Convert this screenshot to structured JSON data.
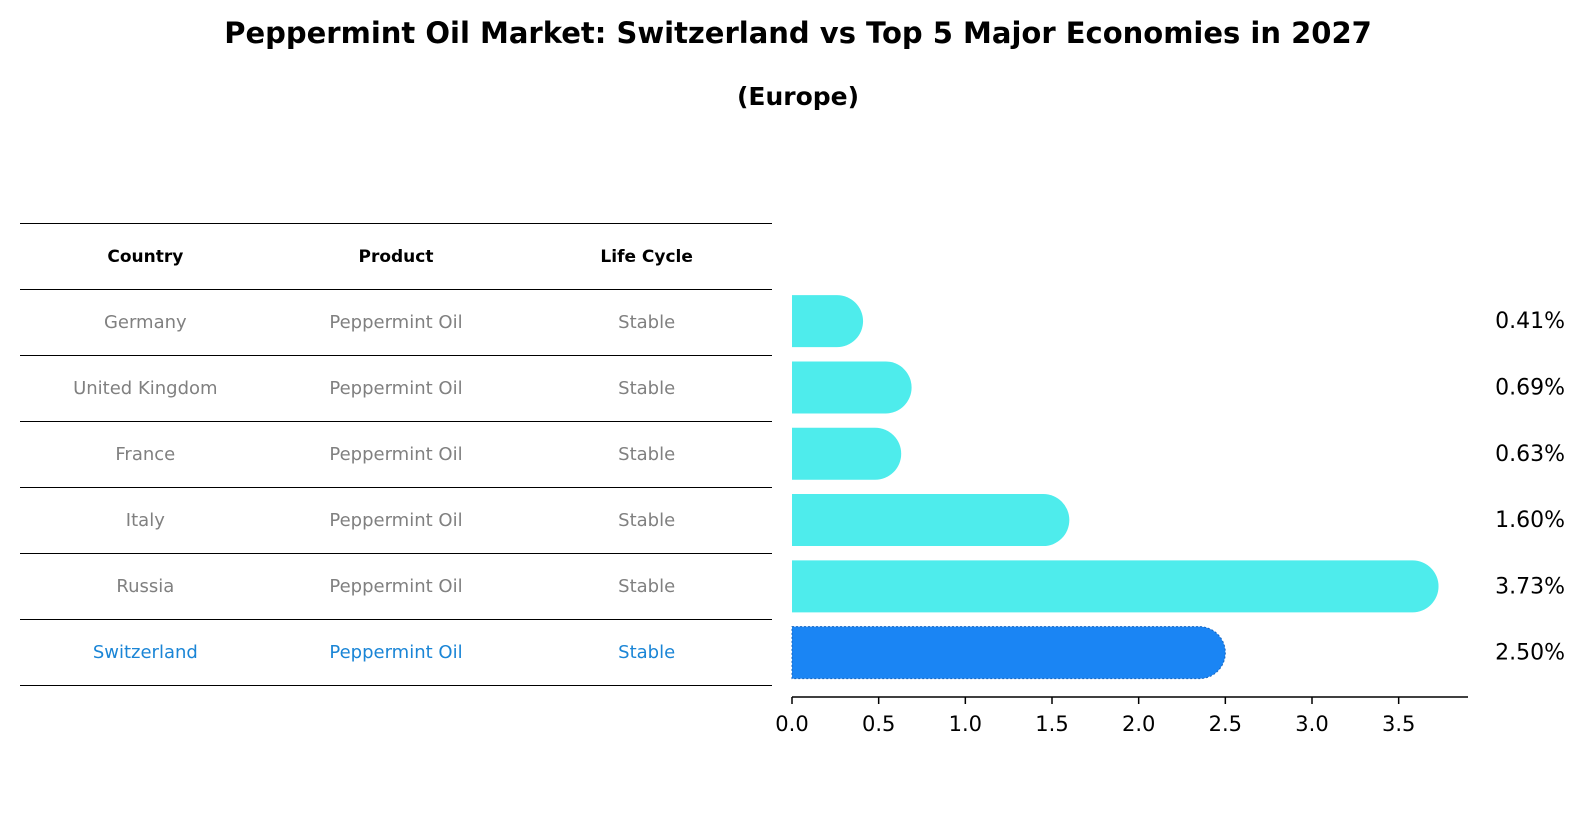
{
  "title": "Peppermint Oil Market: Switzerland vs Top 5 Major Economies in 2027",
  "subtitle": "(Europe)",
  "table": {
    "headers": [
      "Country",
      "Product",
      "Life Cycle"
    ],
    "rows": [
      {
        "country": "Germany",
        "product": "Peppermint Oil",
        "life_cycle": "Stable"
      },
      {
        "country": "United Kingdom",
        "product": "Peppermint Oil",
        "life_cycle": "Stable"
      },
      {
        "country": "France",
        "product": "Peppermint Oil",
        "life_cycle": "Stable"
      },
      {
        "country": "Italy",
        "product": "Peppermint Oil",
        "life_cycle": "Stable"
      },
      {
        "country": "Russia",
        "product": "Peppermint Oil",
        "life_cycle": "Stable"
      },
      {
        "country": "Switzerland",
        "product": "Peppermint Oil",
        "life_cycle": "Stable"
      }
    ]
  },
  "colors": {
    "bar": "#4eecec",
    "highlight_bar": "#1a85f4",
    "highlight_text": "#1a85d6",
    "muted_text": "#808080"
  },
  "chart_data": {
    "type": "bar",
    "orientation": "horizontal",
    "categories": [
      "Germany",
      "United Kingdom",
      "France",
      "Italy",
      "Russia",
      "Switzerland"
    ],
    "values": [
      0.41,
      0.69,
      0.63,
      1.6,
      3.73,
      2.5
    ],
    "value_labels": [
      "0.41%",
      "0.69%",
      "0.63%",
      "1.60%",
      "3.73%",
      "2.50%"
    ],
    "highlight": "Switzerland",
    "xlim": [
      0,
      3.9
    ],
    "xticks": [
      0.0,
      0.5,
      1.0,
      1.5,
      2.0,
      2.5,
      3.0,
      3.5
    ],
    "xtick_labels": [
      "0.0",
      "0.5",
      "1.0",
      "1.5",
      "2.0",
      "2.5",
      "3.0",
      "3.5"
    ],
    "xlabel": "",
    "ylabel": "",
    "grid": false
  }
}
